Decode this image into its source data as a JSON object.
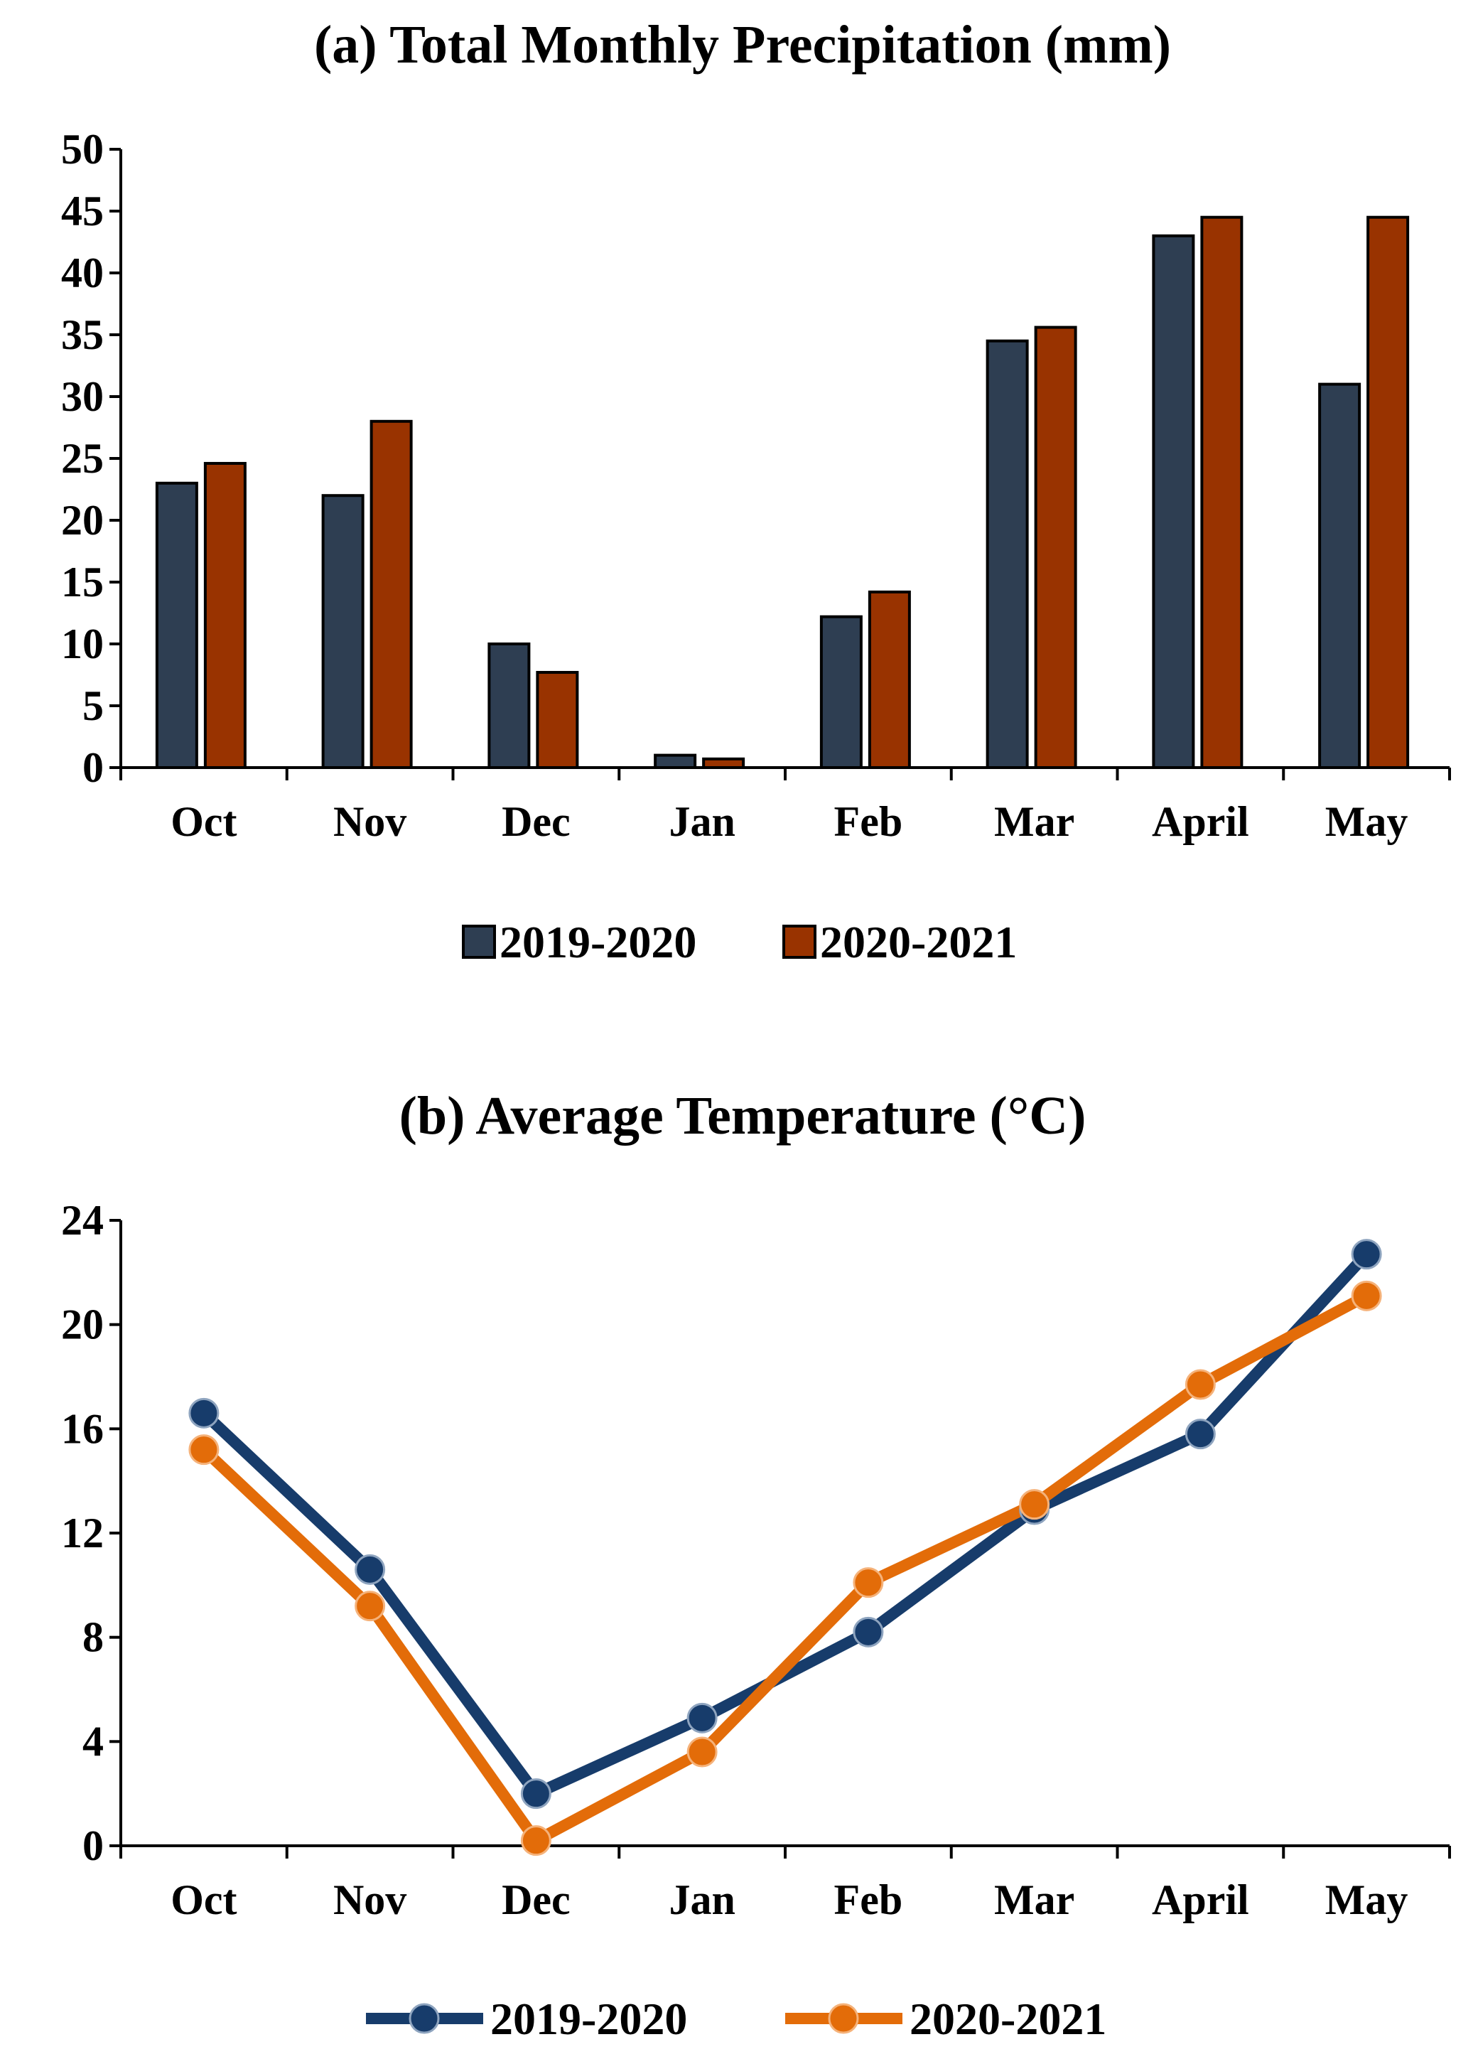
{
  "chart_data": [
    {
      "type": "bar",
      "title": "(a) Total Monthly Precipitation (mm)",
      "xlabel": "",
      "ylabel": "",
      "categories": [
        "Oct",
        "Nov",
        "Dec",
        "Jan",
        "Feb",
        "Mar",
        "April",
        "May"
      ],
      "ylim": [
        0,
        50
      ],
      "yticks": [
        "0",
        "5",
        "10",
        "15",
        "20",
        "25",
        "30",
        "35",
        "40",
        "45",
        "50"
      ],
      "series": [
        {
          "name": "2019-2020",
          "color": "#2e3e52",
          "values": [
            23,
            22,
            10,
            1,
            12.2,
            34.5,
            43,
            31
          ]
        },
        {
          "name": "2020-2021",
          "color": "#993300",
          "values": [
            24.6,
            28,
            7.7,
            0.7,
            14.2,
            35.6,
            44.5,
            44.5
          ]
        }
      ],
      "legend": "bottom"
    },
    {
      "type": "line",
      "title": "(b) Average Temperature (°C)",
      "xlabel": "",
      "ylabel": "",
      "categories": [
        "Oct",
        "Nov",
        "Dec",
        "Jan",
        "Feb",
        "Mar",
        "April",
        "May"
      ],
      "ylim": [
        0,
        24
      ],
      "yticks": [
        "0",
        "4",
        "8",
        "12",
        "16",
        "20",
        "24"
      ],
      "series": [
        {
          "name": "2019-2020",
          "color": "#173c6b",
          "values": [
            16.6,
            10.6,
            2.0,
            4.9,
            8.2,
            12.9,
            15.8,
            22.7
          ]
        },
        {
          "name": "2020-2021",
          "color": "#e36c09",
          "values": [
            15.2,
            9.2,
            0.2,
            3.6,
            10.1,
            13.1,
            17.7,
            21.1
          ]
        }
      ],
      "legend": "bottom"
    }
  ]
}
